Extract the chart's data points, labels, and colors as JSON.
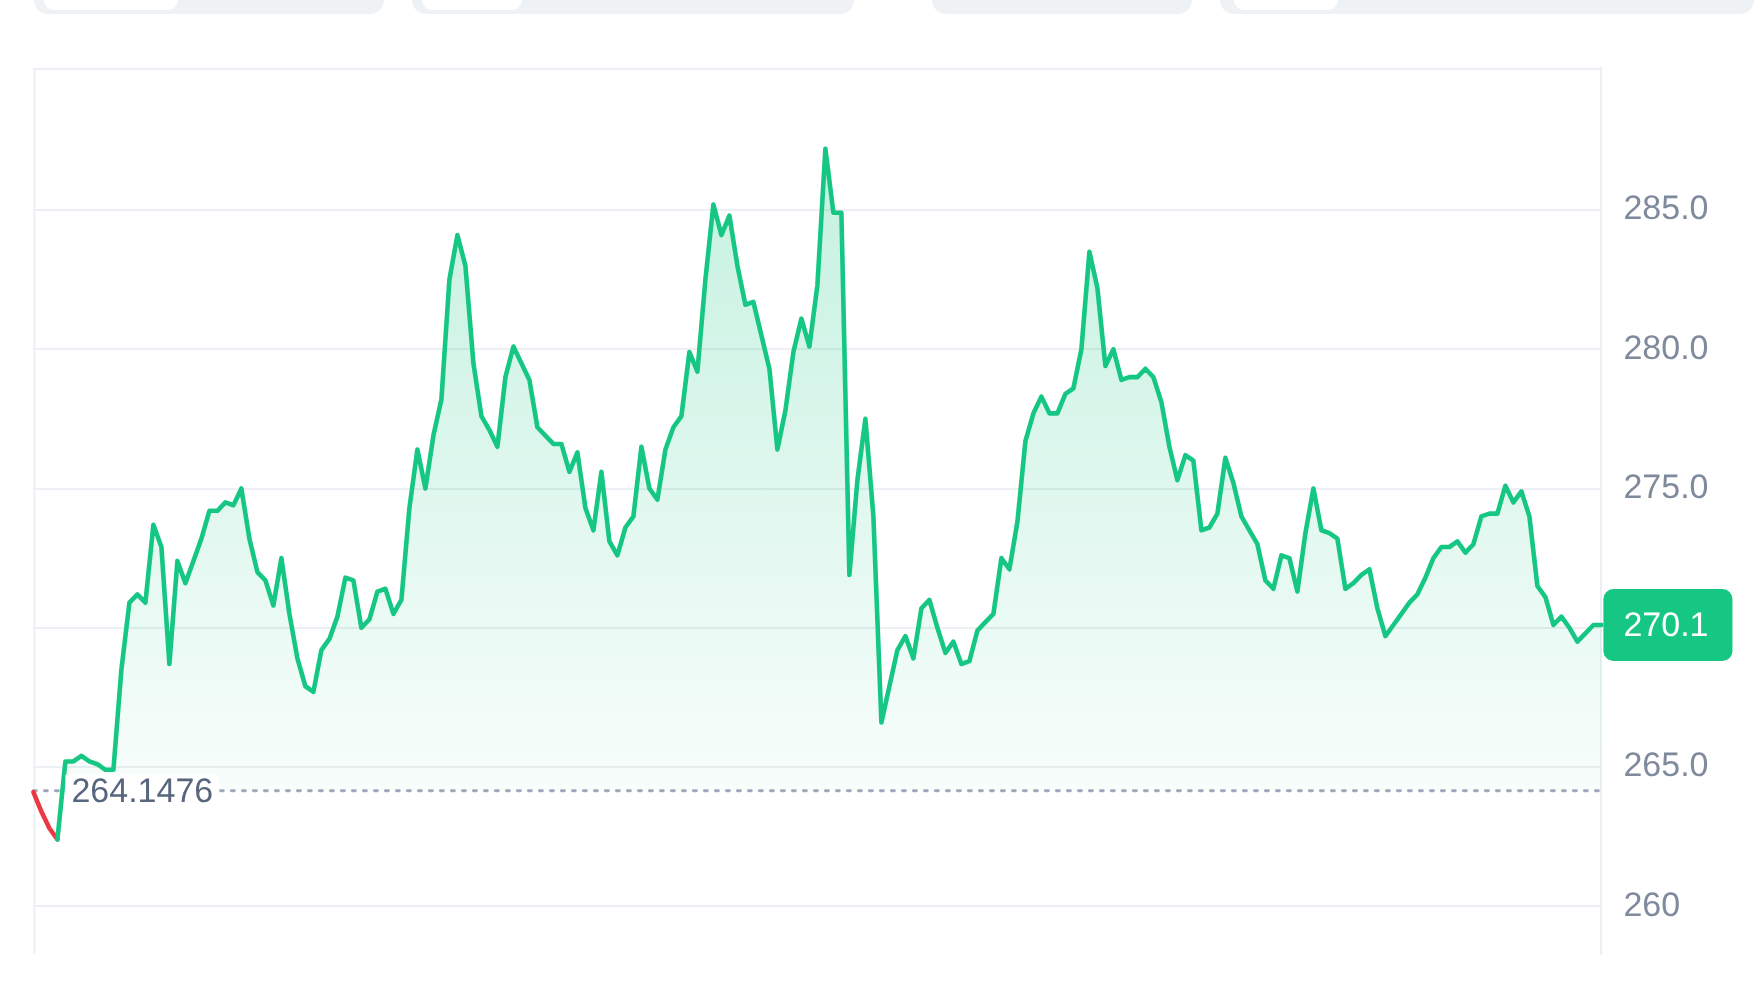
{
  "chart_data": {
    "type": "area",
    "categories": [
      null,
      null,
      null,
      null,
      null,
      null,
      null,
      null,
      null,
      null,
      null,
      null,
      null,
      null,
      null,
      null,
      null,
      null,
      null,
      null,
      null,
      null,
      null,
      null,
      null,
      null,
      null,
      null,
      null,
      null,
      null,
      null,
      null,
      null,
      null,
      null,
      null,
      null,
      null,
      null,
      null,
      null,
      null,
      null,
      null,
      null,
      null,
      null,
      null,
      null,
      null,
      null,
      null,
      null,
      null,
      null,
      null,
      null,
      null,
      null,
      null,
      null,
      null,
      null,
      null,
      null,
      null,
      null,
      null,
      null,
      null,
      null,
      null,
      null,
      null,
      null,
      null,
      null,
      null,
      null,
      null,
      null,
      null,
      null,
      null,
      null,
      null,
      null,
      null,
      null,
      null,
      null,
      null,
      null,
      null,
      null,
      null,
      null,
      null,
      null,
      null,
      null,
      null,
      null,
      null,
      null,
      null,
      null,
      null,
      null,
      null,
      null,
      null,
      null,
      null,
      null,
      null,
      null,
      null,
      null,
      null,
      null,
      null,
      null,
      null,
      null,
      null,
      null,
      null,
      null,
      null,
      null,
      null,
      null,
      null,
      null,
      null,
      null,
      null,
      null,
      null,
      null,
      null,
      null,
      null,
      null,
      null,
      null,
      null,
      null,
      null,
      null,
      null,
      null,
      null,
      null,
      null,
      null,
      null,
      null,
      null,
      null,
      null,
      null,
      null,
      null,
      null,
      null,
      null,
      null,
      null,
      null,
      null,
      null,
      null,
      null,
      null,
      null,
      null,
      null,
      null,
      null,
      null,
      null,
      null,
      null,
      null,
      null,
      null,
      null,
      null,
      null,
      null,
      null,
      null,
      null,
      null
    ],
    "series": [
      {
        "color": "#16c784",
        "values": [
          null,
          null,
          null,
          262.4,
          265.2,
          265.2,
          265.4,
          265.2,
          265.1,
          264.9,
          264.9,
          268.5,
          270.9,
          271.2,
          270.9,
          273.7,
          272.9,
          268.7,
          272.4,
          271.6,
          272.4,
          273.2,
          274.2,
          274.2,
          274.5,
          274.4,
          275.0,
          273.2,
          272.0,
          271.7,
          270.8,
          272.5,
          270.5,
          268.9,
          267.9,
          267.7,
          269.2,
          269.6,
          270.4,
          271.8,
          271.7,
          270.0,
          270.3,
          271.3,
          271.4,
          270.5,
          271.0,
          274.3,
          276.4,
          275.0,
          276.9,
          278.2,
          282.5,
          284.1,
          283.0,
          279.5,
          277.6,
          277.1,
          276.5,
          279.0,
          280.1,
          279.5,
          278.9,
          277.2,
          276.9,
          276.6,
          276.6,
          275.6,
          276.3,
          274.3,
          273.5,
          275.6,
          273.1,
          272.6,
          273.6,
          274.0,
          276.5,
          275.0,
          274.6,
          276.4,
          277.2,
          277.6,
          279.9,
          279.2,
          282.5,
          285.2,
          284.1,
          284.8,
          283.0,
          281.6,
          281.7,
          280.5,
          279.3,
          276.4,
          277.8,
          279.9,
          281.1,
          280.1,
          282.3,
          287.2,
          284.9,
          284.9,
          271.9,
          275.3,
          277.5,
          274.0,
          266.6,
          267.9,
          269.2,
          269.7,
          268.9,
          270.7,
          271.0,
          270.0,
          269.1,
          269.5,
          268.7,
          268.8,
          269.9,
          270.2,
          270.5,
          272.5,
          272.1,
          273.8,
          276.7,
          277.7,
          278.3,
          277.7,
          277.7,
          278.4,
          278.6,
          280.0,
          283.5,
          282.2,
          279.4,
          280.0,
          278.9,
          279.0,
          279.0,
          279.3,
          279.0,
          278.1,
          276.5,
          275.3,
          276.2,
          276.0,
          273.5,
          273.6,
          274.1,
          276.1,
          275.2,
          274.0,
          273.5,
          273.0,
          271.7,
          271.4,
          272.6,
          272.5,
          271.3,
          273.4,
          275.0,
          273.5,
          273.4,
          273.2,
          271.4,
          271.6,
          271.9,
          272.1,
          270.7,
          269.7,
          270.1,
          270.5,
          270.9,
          271.2,
          271.8,
          272.5,
          272.9,
          272.9,
          273.1,
          272.7,
          273.0,
          274.0,
          274.1,
          274.1,
          275.1,
          274.5,
          274.9,
          274.0,
          271.5,
          271.1,
          270.1,
          270.4,
          270.0,
          269.5,
          269.8,
          270.1,
          270.1
        ]
      },
      {
        "type": "line",
        "color": "#ea3943",
        "values": [
          264.1,
          263.4,
          262.8,
          262.4,
          null,
          null,
          null,
          null,
          null,
          null,
          null,
          null,
          null,
          null,
          null,
          null,
          null,
          null,
          null,
          null,
          null,
          null,
          null,
          null,
          null,
          null,
          null,
          null,
          null,
          null,
          null,
          null,
          null,
          null,
          null,
          null,
          null,
          null,
          null,
          null,
          null,
          null,
          null,
          null,
          null,
          null,
          null,
          null,
          null,
          null,
          null,
          null,
          null,
          null,
          null,
          null,
          null,
          null,
          null,
          null,
          null,
          null,
          null,
          null,
          null,
          null,
          null,
          null,
          null,
          null,
          null,
          null,
          null,
          null,
          null,
          null,
          null,
          null,
          null,
          null,
          null,
          null,
          null,
          null,
          null,
          null,
          null,
          null,
          null,
          null,
          null,
          null,
          null,
          null,
          null,
          null,
          null,
          null,
          null,
          null,
          null,
          null,
          null,
          null,
          null,
          null,
          null,
          null,
          null,
          null,
          null,
          null,
          null,
          null,
          null,
          null,
          null,
          null,
          null,
          null,
          null,
          null,
          null,
          null,
          null,
          null,
          null,
          null,
          null,
          null,
          null,
          null,
          null,
          null,
          null,
          null,
          null,
          null,
          null,
          null,
          null,
          null,
          null,
          null,
          null,
          null,
          null,
          null,
          null,
          null,
          null,
          null,
          null,
          null,
          null,
          null,
          null,
          null,
          null,
          null,
          null,
          null,
          null,
          null,
          null,
          null,
          null,
          null,
          null,
          null,
          null,
          null,
          null,
          null,
          null,
          null,
          null,
          null,
          null,
          null,
          null,
          null,
          null,
          null,
          null,
          null,
          null,
          null,
          null,
          null,
          null,
          null,
          null,
          null,
          null,
          null,
          null
        ]
      }
    ],
    "ylim": [
      258.3,
      290.1
    ],
    "yticks": [
      260,
      {
        "value": 265,
        "label": "265.0"
      },
      {
        "value": 270,
        "label": null
      },
      {
        "value": 275,
        "label": "275.0"
      },
      {
        "value": 280,
        "label": "280.0"
      },
      {
        "value": 285,
        "label": "285.0"
      }
    ],
    "grid": "y",
    "tick_labels": "y",
    "ref_lines": [
      {
        "axis": "y",
        "value": 264.1476,
        "label": "264.1476",
        "color": "#a1a7bb",
        "line_style": "dotted"
      }
    ],
    "annotations": [
      "270.1"
    ]
  }
}
